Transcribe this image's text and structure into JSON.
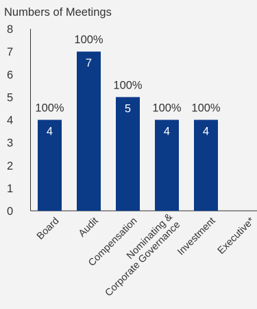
{
  "chart_data": {
    "type": "bar",
    "title": "Numbers of Meetings",
    "xlabel": "",
    "ylabel": "",
    "ylim": [
      0,
      8
    ],
    "yticks": [
      0,
      1,
      2,
      3,
      4,
      5,
      6,
      7,
      8
    ],
    "grid": false,
    "legend": "none",
    "bar_color": "#0b3a87",
    "categories": [
      [
        "Board"
      ],
      [
        "Audit"
      ],
      [
        "Compensation"
      ],
      [
        "Nominating &",
        "Corporate Governance"
      ],
      [
        "Investment"
      ],
      [
        "Executive*"
      ]
    ],
    "values": [
      4,
      7,
      5,
      4,
      4,
      null
    ],
    "value_labels": [
      "4",
      "7",
      "5",
      "4",
      "4",
      ""
    ],
    "attendance_labels": [
      "100%",
      "100%",
      "100%",
      "100%",
      "100%",
      ""
    ]
  }
}
